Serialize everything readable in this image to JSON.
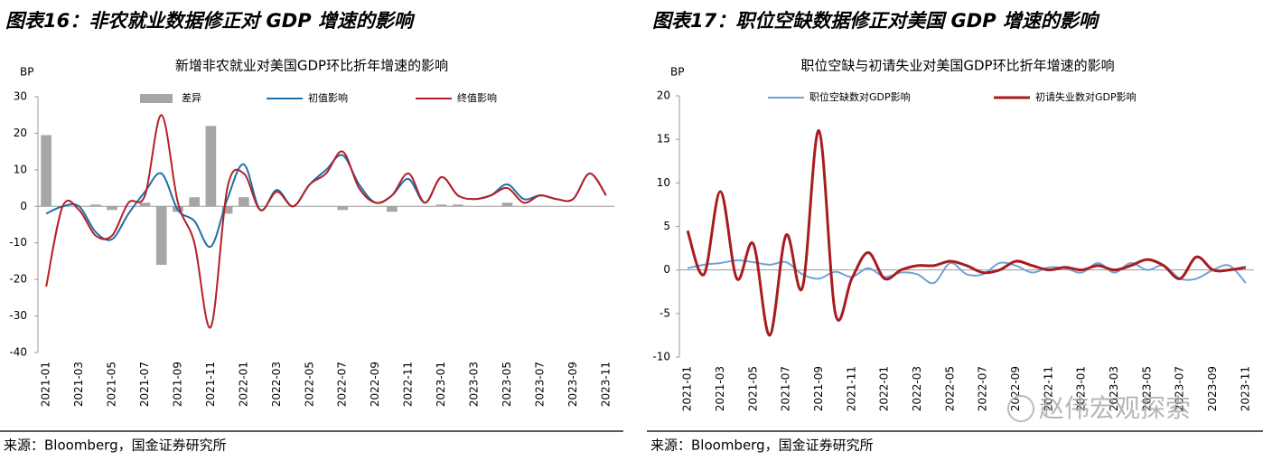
{
  "panels": [
    {
      "heading": "图表16：非农就业数据修正对 GDP 增速的影响",
      "source": "来源：Bloomberg，国金证券研究所"
    },
    {
      "heading": "图表17：职位空缺数据修正对美国 GDP 增速的影响",
      "source": "来源：Bloomberg，国金证券研究所"
    }
  ],
  "watermark": "赵伟宏观探索",
  "chart_data": [
    {
      "type": "combo",
      "title": "新增非农就业对美国GDP环比折年增速的影响",
      "y_label": "BP",
      "categories": [
        "2021-01",
        null,
        "2021-03",
        null,
        "2021-05",
        null,
        "2021-07",
        null,
        "2021-09",
        null,
        "2021-11",
        null,
        "2022-01",
        null,
        "2022-03",
        null,
        "2022-05",
        null,
        "2022-07",
        null,
        "2022-09",
        null,
        "2022-11",
        null,
        "2023-01",
        null,
        "2023-03",
        null,
        "2023-05",
        null,
        "2023-07",
        null,
        "2023-09",
        null,
        "2023-11"
      ],
      "ylim": [
        -40,
        30
      ],
      "yticks": [
        -40,
        -30,
        -20,
        -10,
        0,
        10,
        20,
        30
      ],
      "grid": false,
      "series": [
        {
          "name": "差异",
          "type": "bar",
          "color": "#a6a6a6",
          "values": [
            19.5,
            0,
            0,
            0.5,
            -1,
            0,
            1,
            -16,
            -1.5,
            2.5,
            22,
            -2,
            2.5,
            0,
            0,
            0,
            0,
            0,
            -1,
            0,
            0,
            -1.5,
            0,
            0,
            0.5,
            0.5,
            0,
            0,
            1,
            0,
            0,
            0,
            0,
            0,
            0
          ]
        },
        {
          "name": "初值影响",
          "type": "line",
          "color": "#1f6fa8",
          "values": [
            -2,
            0,
            0,
            -7,
            -9,
            -2,
            4,
            9,
            -1,
            -4,
            -11,
            2,
            11.5,
            -1,
            4.5,
            0,
            6,
            10,
            14,
            6,
            1,
            3,
            7.5,
            1,
            8,
            3,
            2,
            3,
            6,
            2,
            3,
            2,
            2,
            9,
            3
          ]
        },
        {
          "name": "终值影响",
          "type": "line",
          "color": "#b52025",
          "values": [
            -22,
            0,
            -1,
            -8,
            -8,
            1,
            3,
            25,
            1,
            -10,
            -33,
            5,
            9,
            -1,
            4,
            0,
            6,
            9,
            15,
            5,
            1,
            3,
            9,
            1,
            8,
            3,
            2,
            3,
            5,
            1,
            3,
            2,
            2,
            9,
            3
          ]
        }
      ]
    },
    {
      "type": "line",
      "title": "职位空缺与初请失业对美国GDP环比折年增速的影响",
      "y_label": "BP",
      "categories": [
        "2021-01",
        null,
        "2021-03",
        null,
        "2021-05",
        null,
        "2021-07",
        null,
        "2021-09",
        null,
        "2021-11",
        null,
        "2022-01",
        null,
        "2022-03",
        null,
        "2022-05",
        null,
        "2022-07",
        null,
        "2022-09",
        null,
        "2022-11",
        null,
        "2023-01",
        null,
        "2023-03",
        null,
        "2023-05",
        null,
        "2023-07",
        null,
        "2023-09",
        null,
        "2023-11"
      ],
      "ylim": [
        -10,
        20
      ],
      "yticks": [
        -10,
        -5,
        0,
        5,
        10,
        15,
        20
      ],
      "grid": false,
      "series": [
        {
          "name": "职位空缺数对GDP影响",
          "type": "line",
          "color": "#6fa3d6",
          "values": [
            0.2,
            0.6,
            0.8,
            1.1,
            0.9,
            0.6,
            0.9,
            -0.5,
            -1,
            -0.2,
            -0.8,
            0.2,
            -0.8,
            -0.3,
            -0.5,
            -1.5,
            0.8,
            -0.5,
            -0.5,
            0.8,
            0.5,
            -0.3,
            0.3,
            0.2,
            -0.3,
            0.8,
            -0.3,
            0.8,
            0,
            0.5,
            -1,
            -1,
            0,
            0.5,
            -1.5
          ]
        },
        {
          "name": "初请失业数对GDP影响",
          "type": "line",
          "color": "#a81c1f",
          "values": [
            4.5,
            -0.5,
            9,
            -1,
            3,
            -7.5,
            4,
            -2,
            16,
            -5,
            -1,
            2,
            -1,
            0,
            0.5,
            0.5,
            1,
            0.5,
            -0.3,
            0,
            1,
            0.5,
            0,
            0.3,
            0,
            0.5,
            0,
            0.5,
            1.2,
            0.5,
            -1,
            1.5,
            0,
            0,
            0.3
          ]
        }
      ]
    }
  ]
}
